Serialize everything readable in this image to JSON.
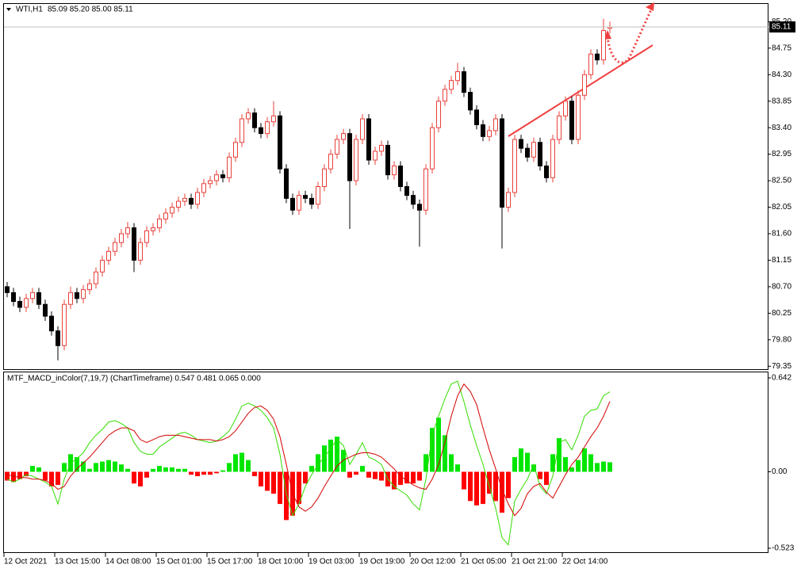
{
  "chart_data": [
    {
      "type": "candlestick",
      "title": "WTI,H1",
      "subtitle": "85.09 85.20 85.00 85.11",
      "categories": [
        "12 Oct 2021",
        null,
        null,
        null,
        null,
        null,
        null,
        null,
        "13 Oct 15:00",
        null,
        null,
        null,
        null,
        null,
        null,
        null,
        "14 Oct 08:00",
        null,
        null,
        null,
        null,
        null,
        null,
        null,
        "15 Oct 01:00",
        null,
        null,
        null,
        null,
        null,
        null,
        null,
        "15 Oct 17:00",
        null,
        null,
        null,
        null,
        null,
        null,
        null,
        "18 Oct 10:00",
        null,
        null,
        null,
        null,
        null,
        null,
        null,
        "19 Oct 03:00",
        null,
        null,
        null,
        null,
        null,
        null,
        null,
        "19 Oct 19:00",
        null,
        null,
        null,
        null,
        null,
        null,
        null,
        "20 Oct 12:00",
        null,
        null,
        null,
        null,
        null,
        null,
        null,
        "21 Oct 05:00",
        null,
        null,
        null,
        null,
        null,
        null,
        null,
        "21 Oct 21:00",
        null,
        null,
        null,
        null,
        null,
        null,
        null,
        "22 Oct 14:00",
        null,
        null,
        null,
        null,
        null,
        null,
        null
      ],
      "open": [
        80.7,
        80.6,
        80.45,
        80.35,
        80.5,
        80.6,
        80.4,
        80.2,
        79.95,
        79.7,
        80.4,
        80.6,
        80.5,
        80.65,
        80.75,
        80.95,
        81.15,
        81.3,
        81.45,
        81.6,
        81.7,
        81.15,
        81.45,
        81.65,
        81.7,
        81.85,
        81.95,
        82.05,
        82.15,
        82.2,
        82.1,
        82.3,
        82.45,
        82.5,
        82.6,
        82.55,
        82.9,
        83.15,
        83.55,
        83.65,
        83.4,
        83.3,
        83.5,
        83.6,
        82.7,
        82.2,
        82.0,
        82.25,
        82.2,
        82.1,
        82.4,
        82.7,
        82.95,
        83.2,
        83.3,
        82.5,
        83.2,
        83.55,
        82.85,
        83.0,
        83.1,
        82.6,
        82.75,
        82.4,
        82.25,
        82.1,
        82.0,
        82.7,
        83.4,
        83.85,
        84.05,
        84.2,
        84.35,
        84.0,
        83.7,
        83.45,
        83.25,
        83.35,
        83.55,
        82.05,
        82.3,
        83.2,
        83.05,
        82.9,
        83.15,
        82.75,
        82.55,
        83.2,
        83.6,
        83.85,
        83.2,
        83.95,
        84.3,
        84.65,
        84.55,
        85.09
      ],
      "high": [
        80.78,
        80.68,
        80.53,
        80.58,
        80.68,
        80.68,
        80.48,
        80.28,
        80.03,
        80.48,
        80.7,
        80.68,
        80.73,
        80.83,
        81.03,
        81.23,
        81.38,
        81.53,
        81.68,
        81.8,
        81.78,
        81.53,
        81.73,
        81.78,
        81.93,
        82.03,
        82.13,
        82.23,
        82.28,
        82.28,
        82.38,
        82.53,
        82.58,
        82.68,
        82.68,
        82.98,
        83.23,
        83.63,
        83.73,
        83.73,
        83.48,
        83.58,
        83.85,
        83.68,
        82.78,
        82.28,
        82.33,
        82.33,
        82.28,
        82.48,
        82.78,
        83.03,
        83.28,
        83.38,
        83.38,
        83.28,
        83.63,
        83.63,
        83.08,
        83.18,
        83.18,
        82.83,
        82.83,
        82.48,
        82.33,
        82.18,
        82.78,
        83.48,
        83.93,
        84.13,
        84.28,
        84.5,
        84.43,
        84.08,
        83.78,
        83.53,
        83.43,
        83.63,
        83.63,
        82.38,
        83.28,
        83.28,
        83.13,
        83.23,
        83.23,
        82.83,
        83.28,
        83.68,
        83.93,
        83.93,
        84.03,
        84.38,
        84.73,
        84.73,
        85.25,
        85.2
      ],
      "low": [
        80.52,
        80.37,
        80.27,
        80.27,
        80.42,
        80.32,
        80.12,
        79.87,
        79.45,
        79.62,
        80.32,
        80.42,
        80.42,
        80.57,
        80.67,
        80.87,
        81.07,
        81.22,
        81.37,
        81.52,
        80.95,
        81.07,
        81.37,
        81.57,
        81.62,
        81.77,
        81.87,
        81.97,
        82.07,
        82.02,
        82.02,
        82.22,
        82.37,
        82.42,
        82.47,
        82.47,
        82.82,
        83.07,
        83.47,
        83.32,
        83.22,
        83.22,
        83.42,
        82.62,
        82.12,
        81.92,
        81.92,
        82.12,
        82.02,
        82.02,
        82.32,
        82.62,
        82.87,
        83.12,
        81.68,
        82.42,
        83.12,
        82.77,
        82.77,
        82.92,
        82.52,
        82.52,
        82.32,
        82.17,
        82.02,
        81.38,
        81.92,
        82.62,
        83.32,
        83.77,
        83.97,
        84.12,
        83.92,
        83.62,
        83.37,
        83.17,
        83.17,
        83.27,
        81.35,
        81.97,
        82.22,
        82.97,
        82.82,
        82.82,
        82.67,
        82.47,
        82.47,
        83.12,
        83.52,
        83.12,
        83.12,
        83.87,
        84.22,
        84.47,
        84.47,
        85.0
      ],
      "close": [
        80.6,
        80.45,
        80.35,
        80.5,
        80.6,
        80.4,
        80.2,
        79.95,
        79.7,
        80.4,
        80.6,
        80.5,
        80.65,
        80.75,
        80.95,
        81.15,
        81.3,
        81.45,
        81.6,
        81.7,
        81.15,
        81.45,
        81.65,
        81.7,
        81.85,
        81.95,
        82.05,
        82.15,
        82.2,
        82.1,
        82.3,
        82.45,
        82.5,
        82.6,
        82.55,
        82.9,
        83.15,
        83.55,
        83.65,
        83.4,
        83.3,
        83.5,
        83.6,
        82.7,
        82.2,
        82.0,
        82.25,
        82.2,
        82.1,
        82.4,
        82.7,
        82.95,
        83.2,
        83.3,
        82.5,
        83.2,
        83.55,
        82.85,
        83.0,
        83.1,
        82.6,
        82.75,
        82.4,
        82.25,
        82.1,
        82.0,
        82.7,
        83.4,
        83.85,
        84.05,
        84.2,
        84.35,
        84.0,
        83.7,
        83.45,
        83.25,
        83.35,
        83.55,
        82.05,
        82.3,
        83.2,
        83.05,
        82.9,
        83.15,
        82.75,
        82.55,
        83.2,
        83.6,
        83.85,
        83.2,
        83.95,
        84.3,
        84.65,
        84.55,
        85.05,
        85.11
      ],
      "up_color": "#e8403a",
      "down_color": "#000000",
      "ylim": [
        79.3,
        85.5
      ],
      "yticks": [
        79.35,
        {
          "value": 79.8,
          "label": "79.80"
        },
        80.25,
        {
          "value": 80.7,
          "label": "80.70"
        },
        81.15,
        {
          "value": 81.6,
          "label": "81.60"
        },
        82.05,
        {
          "value": 82.5,
          "label": "82.50"
        },
        82.95,
        {
          "value": 83.4,
          "label": "83.40"
        },
        83.85,
        {
          "value": 84.3,
          "label": "84.30"
        },
        84.75,
        {
          "value": 85.2,
          "label": "85.20"
        }
      ],
      "last_price": {
        "value": 85.11,
        "label": "85.11"
      }
    },
    {
      "type": "macd",
      "title": "MTF_MACD_inColor(7,19,7) (ChartTimeframe) 0.547 0.481 0.065 0.000",
      "values": [
        -0.06,
        -0.07,
        -0.05,
        -0.03,
        0.04,
        0.03,
        -0.06,
        -0.1,
        -0.09,
        0.06,
        0.12,
        0.1,
        0.07,
        0.02,
        0.06,
        0.07,
        0.08,
        0.07,
        0.05,
        0.02,
        -0.08,
        -0.1,
        -0.04,
        0.02,
        0.04,
        0.03,
        0.03,
        0.02,
        0.02,
        -0.02,
        -0.03,
        -0.02,
        -0.02,
        -0.01,
        0.01,
        0.06,
        0.12,
        0.13,
        0.08,
        -0.03,
        -0.1,
        -0.13,
        -0.15,
        -0.22,
        -0.33,
        -0.3,
        -0.22,
        -0.08,
        0.04,
        0.12,
        0.18,
        0.22,
        0.24,
        0.15,
        -0.04,
        -0.02,
        0.04,
        -0.04,
        -0.05,
        -0.06,
        -0.1,
        -0.12,
        -0.09,
        -0.08,
        -0.08,
        -0.06,
        0.12,
        0.3,
        0.37,
        0.25,
        0.12,
        0.05,
        -0.12,
        -0.2,
        -0.23,
        -0.22,
        -0.15,
        -0.2,
        -0.28,
        -0.18,
        0.1,
        0.16,
        0.13,
        0.05,
        -0.05,
        -0.09,
        0.12,
        0.23,
        0.1,
        0.03,
        0.08,
        0.16,
        0.12,
        0.06,
        0.07,
        0.065
      ],
      "up_color": "#00e600",
      "down_color": "#ff0000",
      "series": [
        {
          "color": "#33dd00",
          "values": [
            -0.05,
            -0.07,
            -0.05,
            -0.02,
            -0.03,
            -0.05,
            -0.07,
            -0.1,
            -0.22,
            -0.05,
            0.06,
            0.09,
            0.13,
            0.2,
            0.25,
            0.29,
            0.34,
            0.35,
            0.33,
            0.3,
            0.2,
            0.14,
            0.12,
            0.12,
            0.17,
            0.2,
            0.23,
            0.26,
            0.27,
            0.25,
            0.22,
            0.21,
            0.2,
            0.21,
            0.24,
            0.28,
            0.36,
            0.45,
            0.47,
            0.45,
            0.42,
            0.37,
            0.3,
            0.12,
            -0.15,
            -0.3,
            -0.22,
            -0.1,
            -0.02,
            0.05,
            0.1,
            0.16,
            0.22,
            0.18,
            0.05,
            0.12,
            0.2,
            0.1,
            0.08,
            0.05,
            -0.05,
            -0.1,
            -0.13,
            -0.16,
            -0.22,
            -0.26,
            -0.05,
            0.25,
            0.38,
            0.5,
            0.6,
            0.62,
            0.48,
            0.32,
            0.18,
            0.05,
            -0.1,
            -0.25,
            -0.45,
            -0.5,
            -0.2,
            -0.12,
            -0.05,
            0.05,
            -0.1,
            -0.15,
            -0.03,
            0.2,
            0.22,
            0.15,
            0.25,
            0.38,
            0.42,
            0.43,
            0.52,
            0.547
          ]
        },
        {
          "color": "#d40000",
          "values": [
            -0.02,
            -0.03,
            -0.04,
            -0.04,
            -0.05,
            -0.05,
            -0.06,
            -0.08,
            -0.12,
            -0.1,
            -0.03,
            0.02,
            0.06,
            0.1,
            0.15,
            0.2,
            0.25,
            0.28,
            0.3,
            0.3,
            0.28,
            0.22,
            0.2,
            0.22,
            0.24,
            0.25,
            0.25,
            0.25,
            0.24,
            0.23,
            0.22,
            0.22,
            0.22,
            0.21,
            0.22,
            0.24,
            0.28,
            0.34,
            0.4,
            0.44,
            0.45,
            0.42,
            0.36,
            0.24,
            0.05,
            -0.15,
            -0.24,
            -0.27,
            -0.24,
            -0.18,
            -0.1,
            -0.03,
            0.04,
            0.08,
            0.1,
            0.12,
            0.13,
            0.13,
            0.12,
            0.1,
            0.06,
            0.02,
            -0.03,
            -0.06,
            -0.09,
            -0.11,
            -0.12,
            -0.05,
            0.05,
            0.2,
            0.38,
            0.52,
            0.6,
            0.55,
            0.46,
            0.3,
            0.15,
            0.02,
            -0.12,
            -0.22,
            -0.3,
            -0.25,
            -0.15,
            -0.1,
            -0.08,
            -0.14,
            -0.18,
            -0.1,
            -0.02,
            0.05,
            0.1,
            0.17,
            0.24,
            0.3,
            0.38,
            0.481
          ]
        }
      ],
      "ylim": [
        -0.55,
        0.68
      ],
      "yticks": [
        0.642,
        {
          "value": 0,
          "label": "0.00"
        },
        -0.523
      ]
    }
  ]
}
